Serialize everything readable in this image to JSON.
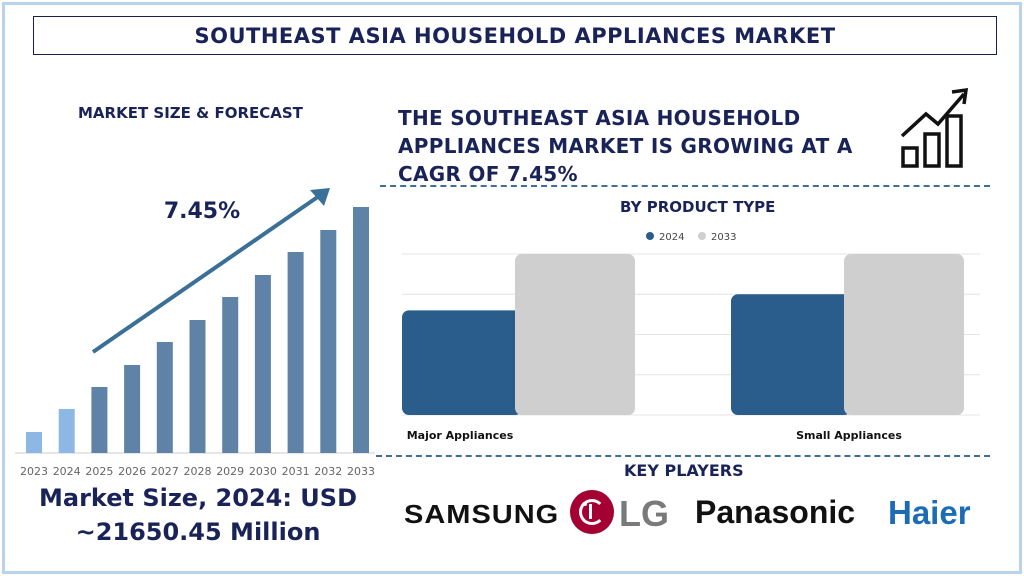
{
  "title": "SOUTHEAST ASIA HOUSEHOLD APPLIANCES MARKET",
  "left": {
    "heading": "MARKET SIZE & FORECAST",
    "market_size": {
      "line1": "Market Size, 2024: USD",
      "line2": "~21650.45 Million"
    }
  },
  "headline": "THE SOUTHEAST ASIA HOUSEHOLD APPLIANCES MARKET IS GROWING AT A CAGR OF 7.45%",
  "key_players": {
    "heading": "KEY PLAYERS",
    "logos": [
      "SAMSUNG",
      "LG",
      "Panasonic",
      "Haier"
    ]
  },
  "colors": {
    "navy": "#1a2358",
    "forecast_bar": "#5f83a6",
    "historic_bar": "#8db8e3",
    "series_2024": "#2a5d8c",
    "series_2033": "#cfcfcf",
    "arrow": "#3a6f98"
  },
  "icons": [
    "growth-chart-icon"
  ],
  "chart_data": [
    {
      "type": "bar",
      "title": "",
      "annotation": "7.45%",
      "categories": [
        "2023",
        "2024",
        "2025",
        "2026",
        "2027",
        "2028",
        "2029",
        "2030",
        "2031",
        "2032",
        "2033"
      ],
      "values": [
        21,
        44,
        66,
        88,
        111,
        133,
        156,
        178,
        201,
        223,
        246
      ],
      "historic": [
        "2023",
        "2024"
      ],
      "grid": false,
      "ylim": [
        0,
        250
      ]
    },
    {
      "type": "bar",
      "title": "BY PRODUCT TYPE",
      "categories": [
        "Major Appliances",
        "Small Appliances"
      ],
      "series": [
        {
          "name": "2024",
          "values": [
            2.6,
            3.0
          ]
        },
        {
          "name": "2033",
          "values": [
            4,
            4
          ]
        }
      ],
      "legend": "top",
      "grid": true,
      "ylim": [
        0,
        4
      ]
    }
  ]
}
